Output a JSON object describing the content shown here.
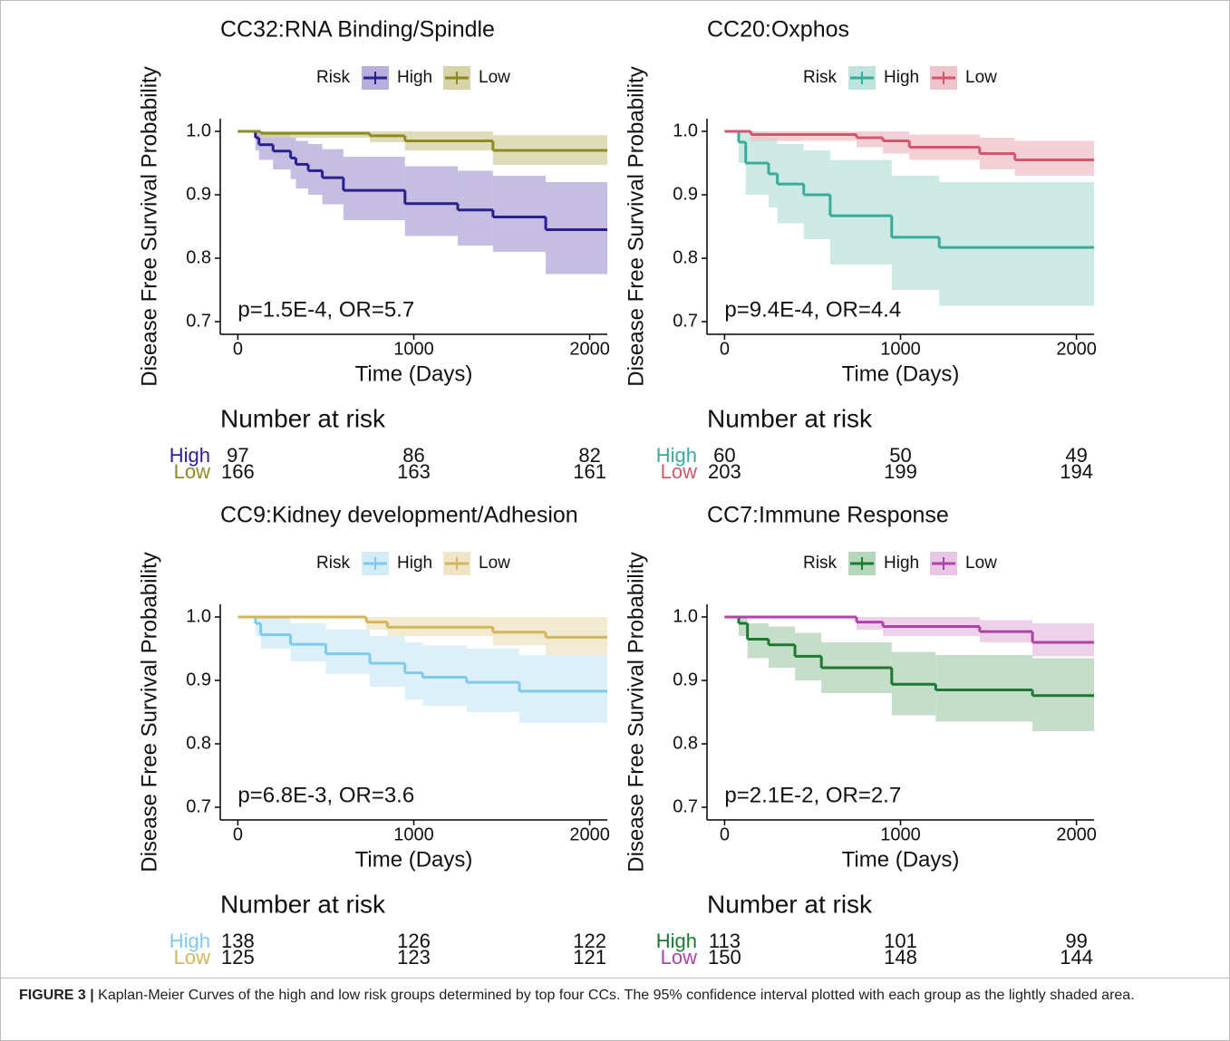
{
  "chart_data": [
    {
      "type": "km",
      "title": "CC32:RNA Binding/Spindle",
      "legend_title": "Risk",
      "annotation": "p=1.5E-4, OR=5.7",
      "x_label": "Time (Days)",
      "y_label": "Disease Free Survival Probability",
      "risk_table_title": "Number at risk",
      "xlim": [
        -100,
        2100
      ],
      "ylim": [
        0.68,
        1.02
      ],
      "xticks": [
        0,
        1000,
        2000
      ],
      "yticks": [
        0.7,
        0.8,
        0.9,
        {
          "value": 1,
          "label": "1.0"
        }
      ],
      "series": [
        {
          "name": "High",
          "color": "#2a1f8f",
          "band_color": "#b7aedb",
          "x": [
            0,
            100,
            120,
            200,
            300,
            330,
            400,
            480,
            600,
            950,
            1250,
            1450,
            1750
          ],
          "values": [
            1,
            0.99,
            0.979,
            0.969,
            0.958,
            0.948,
            0.938,
            0.927,
            0.907,
            0.886,
            0.876,
            0.865,
            0.845
          ],
          "lower": [
            1,
            0.97,
            0.955,
            0.94,
            0.925,
            0.91,
            0.9,
            0.885,
            0.86,
            0.835,
            0.82,
            0.81,
            0.775
          ],
          "upper": [
            1,
            1,
            1,
            0.995,
            0.99,
            0.985,
            0.98,
            0.972,
            0.96,
            0.945,
            0.938,
            0.93,
            0.92
          ],
          "at_risk": [
            97,
            86,
            82
          ]
        },
        {
          "name": "Low",
          "color": "#8f8a1e",
          "band_color": "#d6d3a8",
          "x": [
            0,
            130,
            750,
            950,
            1450
          ],
          "values": [
            1,
            0.997,
            0.993,
            0.985,
            0.97
          ],
          "lower": [
            1,
            0.99,
            0.983,
            0.97,
            0.947
          ],
          "upper": [
            1,
            1,
            1,
            1,
            0.994
          ],
          "at_risk": [
            166,
            163,
            161
          ]
        }
      ]
    },
    {
      "type": "km",
      "title": "CC20:Oxphos",
      "legend_title": "Risk",
      "annotation": "p=9.4E-4, OR=4.4",
      "x_label": "Time (Days)",
      "y_label": "Disease Free Survival Probability",
      "risk_table_title": "Number at risk",
      "xlim": [
        -100,
        2100
      ],
      "ylim": [
        0.68,
        1.02
      ],
      "xticks": [
        0,
        1000,
        2000
      ],
      "yticks": [
        0.7,
        0.8,
        0.9,
        {
          "value": 1,
          "label": "1.0"
        }
      ],
      "series": [
        {
          "name": "High",
          "color": "#3aab9b",
          "band_color": "#bfe3dd",
          "x": [
            0,
            80,
            120,
            250,
            300,
            450,
            600,
            950,
            1220
          ],
          "values": [
            1,
            0.983,
            0.95,
            0.933,
            0.917,
            0.9,
            0.867,
            0.833,
            0.817
          ],
          "lower": [
            1,
            0.95,
            0.9,
            0.88,
            0.855,
            0.83,
            0.79,
            0.75,
            0.725
          ],
          "upper": [
            1,
            1,
            1,
            0.99,
            0.98,
            0.97,
            0.955,
            0.93,
            0.92
          ],
          "at_risk": [
            60,
            50,
            49
          ]
        },
        {
          "name": "Low",
          "color": "#d4566e",
          "band_color": "#f0c4cc",
          "x": [
            0,
            150,
            750,
            900,
            1050,
            1450,
            1650
          ],
          "values": [
            1,
            0.995,
            0.99,
            0.985,
            0.975,
            0.965,
            0.955
          ],
          "lower": [
            1,
            0.985,
            0.975,
            0.965,
            0.955,
            0.94,
            0.93
          ],
          "upper": [
            1,
            1,
            1,
            1,
            0.995,
            0.99,
            0.985
          ],
          "at_risk": [
            203,
            199,
            194
          ]
        }
      ]
    },
    {
      "type": "km",
      "title": "CC9:Kidney development/Adhesion",
      "legend_title": "Risk",
      "annotation": "p=6.8E-3, OR=3.6",
      "x_label": "Time (Days)",
      "y_label": "Disease Free Survival Probability",
      "risk_table_title": "Number at risk",
      "xlim": [
        -100,
        2100
      ],
      "ylim": [
        0.68,
        1.02
      ],
      "xticks": [
        0,
        1000,
        2000
      ],
      "yticks": [
        0.7,
        0.8,
        0.9,
        {
          "value": 1,
          "label": "1.0"
        }
      ],
      "series": [
        {
          "name": "High",
          "color": "#7fc9ea",
          "band_color": "#d3ecf7",
          "x": [
            0,
            100,
            130,
            300,
            500,
            750,
            950,
            1050,
            1300,
            1600
          ],
          "values": [
            1,
            0.99,
            0.972,
            0.957,
            0.942,
            0.927,
            0.912,
            0.905,
            0.897,
            0.883
          ],
          "lower": [
            1,
            0.97,
            0.95,
            0.93,
            0.91,
            0.89,
            0.87,
            0.86,
            0.85,
            0.833
          ],
          "upper": [
            1,
            1,
            1,
            0.99,
            0.98,
            0.97,
            0.96,
            0.955,
            0.95,
            0.94
          ],
          "at_risk": [
            138,
            126,
            122
          ]
        },
        {
          "name": "Low",
          "color": "#d3b65c",
          "band_color": "#efe5c6",
          "x": [
            0,
            730,
            850,
            1450,
            1750
          ],
          "values": [
            1,
            0.992,
            0.984,
            0.976,
            0.968
          ],
          "lower": [
            1,
            0.98,
            0.97,
            0.955,
            0.94
          ],
          "upper": [
            1,
            1,
            1,
            1,
            1
          ],
          "at_risk": [
            125,
            123,
            121
          ]
        }
      ]
    },
    {
      "type": "km",
      "title": "CC7:Immune Response",
      "legend_title": "Risk",
      "annotation": "p=2.1E-2, OR=2.7",
      "x_label": "Time (Days)",
      "y_label": "Disease Free Survival Probability",
      "risk_table_title": "Number at risk",
      "xlim": [
        -100,
        2100
      ],
      "ylim": [
        0.68,
        1.02
      ],
      "xticks": [
        0,
        1000,
        2000
      ],
      "yticks": [
        0.7,
        0.8,
        0.9,
        {
          "value": 1,
          "label": "1.0"
        }
      ],
      "series": [
        {
          "name": "High",
          "color": "#1b7a30",
          "band_color": "#b5d6bb",
          "x": [
            0,
            80,
            130,
            250,
            400,
            550,
            950,
            1200,
            1750
          ],
          "values": [
            1,
            0.99,
            0.965,
            0.956,
            0.938,
            0.92,
            0.894,
            0.885,
            0.876
          ],
          "lower": [
            1,
            0.97,
            0.935,
            0.92,
            0.9,
            0.88,
            0.845,
            0.835,
            0.82
          ],
          "upper": [
            1,
            1,
            0.99,
            0.985,
            0.975,
            0.96,
            0.945,
            0.94,
            0.935
          ],
          "at_risk": [
            113,
            101,
            99
          ]
        },
        {
          "name": "Low",
          "color": "#b142a9",
          "band_color": "#e8c6e4",
          "x": [
            0,
            750,
            900,
            1450,
            1750
          ],
          "values": [
            1,
            0.992,
            0.985,
            0.977,
            0.96
          ],
          "lower": [
            1,
            0.98,
            0.97,
            0.96,
            0.938
          ],
          "upper": [
            1,
            1,
            1,
            0.995,
            0.99
          ],
          "at_risk": [
            150,
            148,
            144
          ]
        }
      ]
    }
  ],
  "caption": {
    "label": "FIGURE 3 |",
    "text": "Kaplan-Meier Curves of the high and low risk groups determined by top four CCs. The 95% confidence interval plotted with each group as the lightly shaded area."
  }
}
